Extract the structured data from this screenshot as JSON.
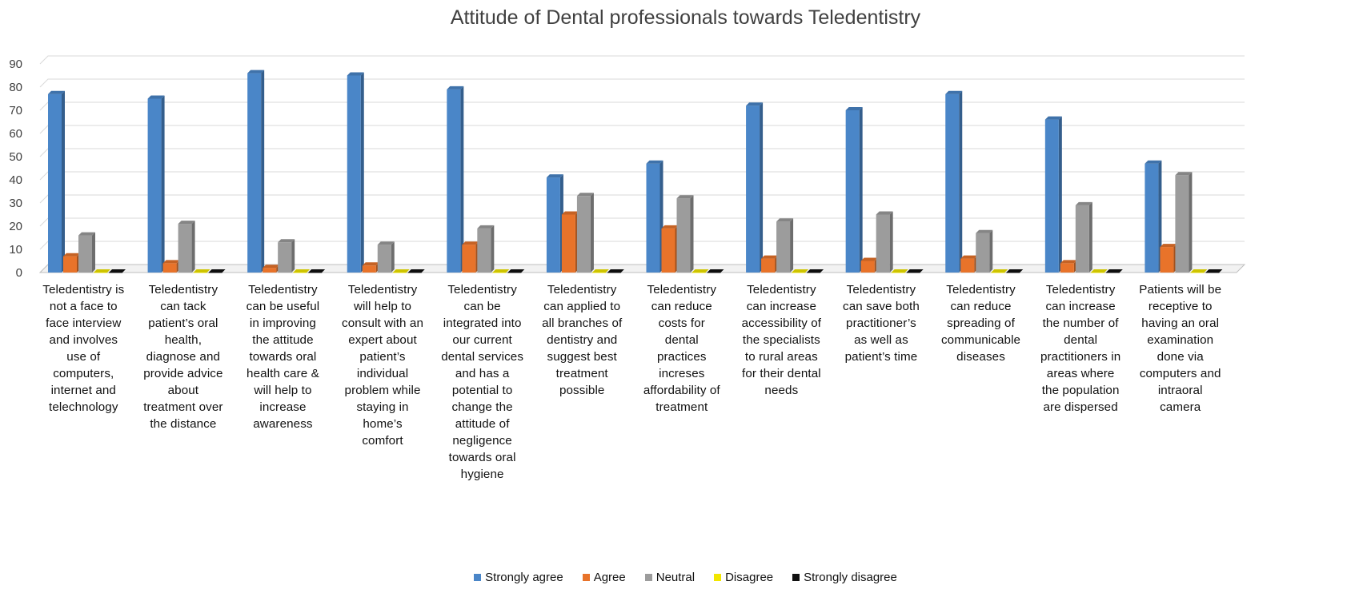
{
  "chart_data": {
    "type": "bar",
    "title": "Attitude of Dental professionals towards Teledentistry",
    "xlabel": "",
    "ylabel": "",
    "ylim": [
      0,
      90
    ],
    "yticks": [
      "0",
      "10",
      "20",
      "30",
      "40",
      "50",
      "60",
      "70",
      "80",
      "90"
    ],
    "grid": true,
    "legend_position": "bottom",
    "categories": [
      "Teledentistry is not a face to face interview and involves use of computers, internet and telechnology",
      "Teledentistry can tack patient’s oral health, diagnose and provide advice about treatment over the distance",
      "Teledentistry can be useful in improving the attitude towards oral health care & will help to increase awareness",
      "Teledentistry will help to consult with an expert about patient’s individual problem while staying in home’s comfort",
      "Teledentistry can be integrated into our current dental services and has a potential to change the attitude of negligence towards oral hygiene",
      "Teledentistry can applied to all branches of dentistry and suggest best treatment possible",
      "Teledentistry can reduce costs for dental practices increses affordability of treatment",
      "Teledentistry can increase accessibility of the specialists to rural areas for their dental needs",
      "Teledentistry can save both practitioner’s as well as patient’s time",
      "Teledentistry can reduce spreading of communicable diseases",
      "Teledentistry can increase the number of dental practitioners in areas where the population are dispersed",
      "Patients will be receptive to having an oral examination done via computers and intraoral camera"
    ],
    "series": [
      {
        "name": "Strongly agree",
        "color": "#4a86c8",
        "values": [
          77,
          75,
          86,
          85,
          79,
          41,
          47,
          72,
          70,
          77,
          66,
          47
        ]
      },
      {
        "name": "Agree",
        "color": "#e8732a",
        "values": [
          7,
          4,
          2,
          3,
          12,
          25,
          19,
          6,
          5,
          6,
          4,
          11
        ]
      },
      {
        "name": "Neutral",
        "color": "#9c9c9c",
        "values": [
          16,
          21,
          13,
          12,
          19,
          33,
          32,
          22,
          25,
          17,
          29,
          42
        ]
      },
      {
        "name": "Disagree",
        "color": "#f2e600",
        "values": [
          0,
          0,
          0,
          0,
          0,
          0,
          0,
          0,
          0,
          0,
          0,
          0
        ]
      },
      {
        "name": "Strongly disagree",
        "color": "#111111",
        "values": [
          0,
          0,
          0,
          0,
          0,
          0,
          0,
          0,
          0,
          0,
          0,
          0
        ]
      }
    ],
    "category_lines": [
      [
        "Teledentistry is",
        "not a face to",
        "face interview",
        "and involves",
        "use of",
        "computers,",
        "internet and",
        "telechnology"
      ],
      [
        "Teledentistry",
        "can tack",
        "patient’s oral",
        "health,",
        "diagnose and",
        "provide advice",
        "about",
        "treatment over",
        "the distance"
      ],
      [
        "Teledentistry",
        "can be useful",
        "in improving",
        "the attitude",
        "towards oral",
        "health care &",
        "will help to",
        "increase",
        "awareness"
      ],
      [
        "Teledentistry",
        "will help to",
        "consult with an",
        "expert about",
        "patient’s",
        "individual",
        "problem while",
        "staying in",
        "home’s",
        "comfort"
      ],
      [
        "Teledentistry",
        "can be",
        "integrated into",
        "our current",
        "dental services",
        "and has a",
        "potential to",
        "change the",
        "attitude of",
        "negligence",
        "towards oral",
        "hygiene"
      ],
      [
        "Teledentistry",
        "can applied to",
        "all branches of",
        "dentistry and",
        "suggest best",
        "treatment",
        "possible"
      ],
      [
        "Teledentistry",
        "can reduce",
        "costs for",
        "dental",
        "practices",
        "increses",
        "affordability of",
        "treatment"
      ],
      [
        "Teledentistry",
        "can increase",
        "accessibility of",
        "the specialists",
        "to rural areas",
        "for their dental",
        "needs"
      ],
      [
        "Teledentistry",
        "can save both",
        "practitioner’s",
        "as well as",
        "patient’s time"
      ],
      [
        "Teledentistry",
        "can reduce",
        "spreading of",
        "communicable",
        "diseases"
      ],
      [
        "Teledentistry",
        "can increase",
        "the number of",
        "dental",
        "practitioners in",
        "areas where",
        "the population",
        "are dispersed"
      ],
      [
        "Patients will be",
        "receptive to",
        "having an oral",
        "examination",
        "done via",
        "computers and",
        "intraoral",
        "camera"
      ]
    ]
  }
}
